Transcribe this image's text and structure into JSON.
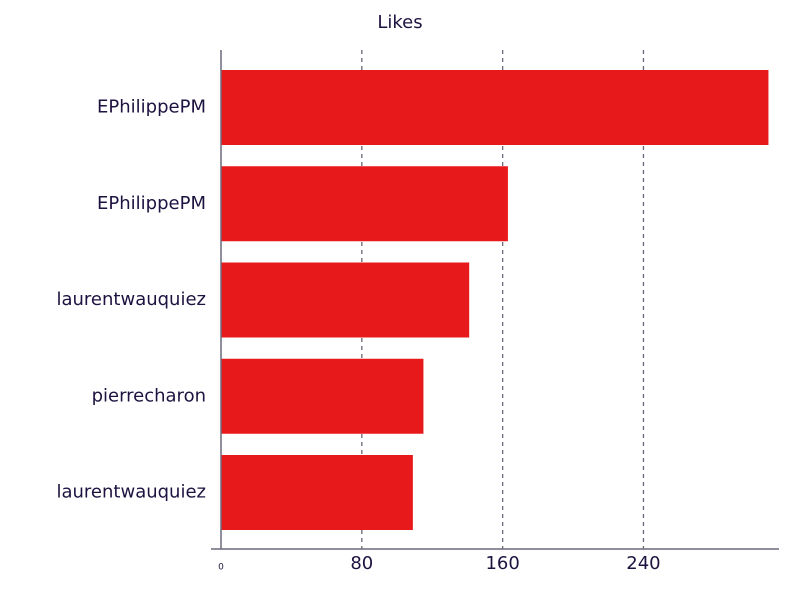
{
  "chart_data": {
    "type": "hbar",
    "title": "Likes",
    "categories": [
      "EPhilippePM",
      "EPhilippePM",
      "laurentwauquiez",
      "pierrecharon",
      "laurentwauquiez"
    ],
    "values": [
      311,
      163,
      141,
      115,
      109
    ],
    "color": "#e8191a",
    "xlim": [
      0,
      317
    ],
    "xticks": [
      0,
      80,
      160,
      240
    ],
    "grid": true
  }
}
